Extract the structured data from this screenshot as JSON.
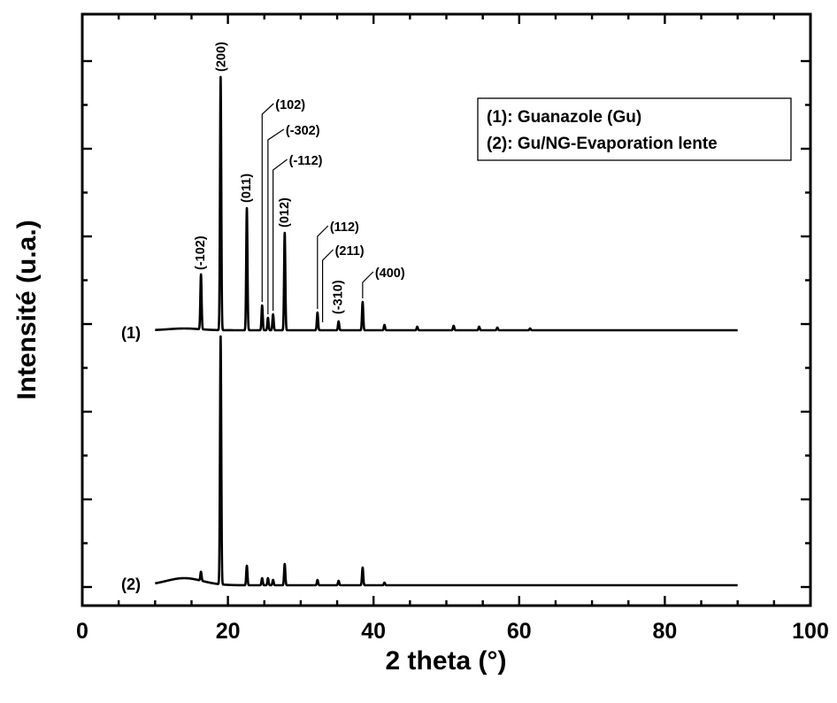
{
  "chart_data": {
    "type": "line",
    "xlabel": "2 theta (°)",
    "ylabel": "Intensité (u.a.)",
    "xlim": [
      0,
      100
    ],
    "x_ticks": [
      0,
      20,
      40,
      60,
      80,
      100
    ],
    "x_tick_labels": [
      "0",
      "20",
      "40",
      "60",
      "80",
      "100"
    ],
    "y_ticks_labeled": false,
    "grid": false,
    "legend": {
      "placement": "top-right",
      "entries": [
        "(1): Guanazole (Gu)",
        "(2): Gu/NG-Evaporation lente"
      ]
    },
    "series": [
      {
        "tag": "(1)",
        "offset": 1.0,
        "baseline": 0.0,
        "hump": {
          "center": 14,
          "height": 0.02,
          "width": 3
        },
        "peaks": [
          {
            "x": 16.3,
            "y": 0.62
          },
          {
            "x": 19.0,
            "y": 2.86
          },
          {
            "x": 22.6,
            "y": 1.38
          },
          {
            "x": 24.7,
            "y": 0.28
          },
          {
            "x": 25.5,
            "y": 0.14
          },
          {
            "x": 26.2,
            "y": 0.18
          },
          {
            "x": 27.8,
            "y": 1.1
          },
          {
            "x": 32.3,
            "y": 0.2
          },
          {
            "x": 35.2,
            "y": 0.1
          },
          {
            "x": 38.5,
            "y": 0.32
          },
          {
            "x": 41.5,
            "y": 0.06
          },
          {
            "x": 46.0,
            "y": 0.04
          },
          {
            "x": 51.0,
            "y": 0.05
          },
          {
            "x": 54.5,
            "y": 0.04
          },
          {
            "x": 57.0,
            "y": 0.03
          },
          {
            "x": 61.5,
            "y": 0.02
          }
        ]
      },
      {
        "tag": "(2)",
        "offset": 0.0,
        "baseline": 0.0,
        "hump": {
          "center": 14,
          "height": 0.08,
          "width": 3.5
        },
        "peaks": [
          {
            "x": 16.3,
            "y": 0.1
          },
          {
            "x": 19.0,
            "y": 2.8
          },
          {
            "x": 22.6,
            "y": 0.22
          },
          {
            "x": 24.7,
            "y": 0.08
          },
          {
            "x": 25.5,
            "y": 0.08
          },
          {
            "x": 26.2,
            "y": 0.06
          },
          {
            "x": 27.8,
            "y": 0.24
          },
          {
            "x": 32.3,
            "y": 0.06
          },
          {
            "x": 35.2,
            "y": 0.05
          },
          {
            "x": 38.5,
            "y": 0.2
          },
          {
            "x": 41.5,
            "y": 0.03
          }
        ]
      }
    ],
    "annotations": [
      {
        "text": "(-102)",
        "x": 16.3,
        "series": "(1)"
      },
      {
        "text": "(200)",
        "x": 19.0,
        "series": "(1)"
      },
      {
        "text": "(011)",
        "x": 22.6,
        "series": "(1)"
      },
      {
        "text": "(102)",
        "x": 24.7,
        "series": "(1)"
      },
      {
        "text": "(-302)",
        "x": 25.5,
        "series": "(1)"
      },
      {
        "text": "(-112)",
        "x": 26.2,
        "series": "(1)"
      },
      {
        "text": "(012)",
        "x": 27.8,
        "series": "(1)"
      },
      {
        "text": "(112)",
        "x": 32.3,
        "series": "(1)"
      },
      {
        "text": "(211)",
        "x": 33.0,
        "series": "(1)"
      },
      {
        "text": "(-310)",
        "x": 35.2,
        "series": "(1)"
      },
      {
        "text": "(400)",
        "x": 38.5,
        "series": "(1)"
      }
    ]
  }
}
